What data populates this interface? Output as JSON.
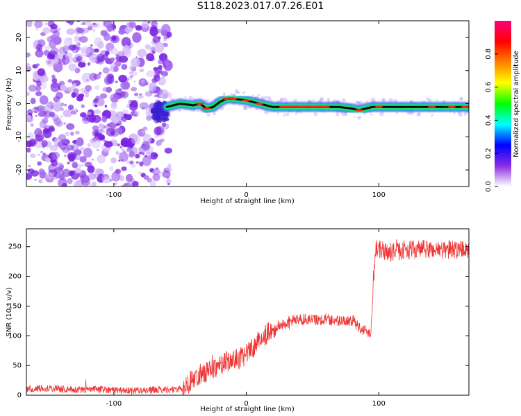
{
  "title": "S118.2023.017.07.26.E01",
  "chart_data": [
    {
      "type": "heatmap",
      "xlabel": "Height of straight line (km)",
      "ylabel": "Frequency (Hz)",
      "xlim": [
        -166,
        168
      ],
      "ylim": [
        -25,
        25
      ],
      "x_ticks": [
        -100,
        0,
        100
      ],
      "y_ticks": [
        -20,
        -10,
        0,
        10,
        20
      ],
      "colorbar": {
        "label": "Normalized spectral amplitude",
        "range": [
          0,
          1
        ],
        "ticks": [
          "0.0",
          "0.2",
          "0.4",
          "0.6",
          "0.8"
        ],
        "colors": [
          "#ffffff",
          "#8a2be2",
          "#0000ff",
          "#00ffff",
          "#00ff00",
          "#ffff00",
          "#ff8000",
          "#ff0000",
          "#ff0080"
        ]
      },
      "noise_region": {
        "x_range": [
          -166,
          -60
        ],
        "description_color": "#7b2fd6"
      },
      "ridge": {
        "x": [
          -60,
          -50,
          -40,
          -35,
          -30,
          -25,
          -20,
          -15,
          -10,
          0,
          10,
          20,
          30,
          40,
          50,
          60,
          70,
          80,
          85,
          90,
          95,
          100,
          110,
          120,
          130,
          140,
          150,
          160,
          168
        ],
        "y": [
          -1,
          0,
          -0.5,
          0,
          -1.5,
          -1,
          0.5,
          1.5,
          1.5,
          1,
          0,
          -1,
          -1,
          -1,
          -1,
          -1,
          -1,
          -1.5,
          -2,
          -1.5,
          -1,
          -1,
          -1,
          -1,
          -1,
          -1,
          -1,
          -1,
          -1
        ]
      }
    },
    {
      "type": "line",
      "xlabel": "Height of straight line (km)",
      "ylabel": "SNR (10 * v/v)",
      "xlim": [
        -166,
        168
      ],
      "ylim": [
        0,
        280
      ],
      "x_ticks": [
        -100,
        0,
        100
      ],
      "y_ticks": [
        0,
        50,
        100,
        150,
        200,
        250
      ],
      "color": "#ee3333",
      "series": [
        {
          "x": [
            -166,
            -150,
            -130,
            -110,
            -90,
            -70,
            -50,
            -46,
            -40,
            -35,
            -30,
            -25,
            -20,
            -15,
            -10,
            -5,
            0,
            5,
            10,
            15,
            20,
            25,
            30,
            40,
            50,
            60,
            70,
            80,
            85,
            88,
            94,
            96,
            98,
            100,
            110,
            120,
            130,
            140,
            150,
            160,
            168
          ],
          "y": [
            10,
            12,
            9,
            10,
            8,
            9,
            10,
            15,
            28,
            35,
            40,
            45,
            52,
            57,
            58,
            62,
            68,
            80,
            92,
            103,
            110,
            117,
            122,
            128,
            127,
            128,
            125,
            126,
            115,
            110,
            105,
            200,
            250,
            245,
            240,
            245,
            245,
            245,
            245,
            245,
            245
          ]
        }
      ]
    }
  ]
}
